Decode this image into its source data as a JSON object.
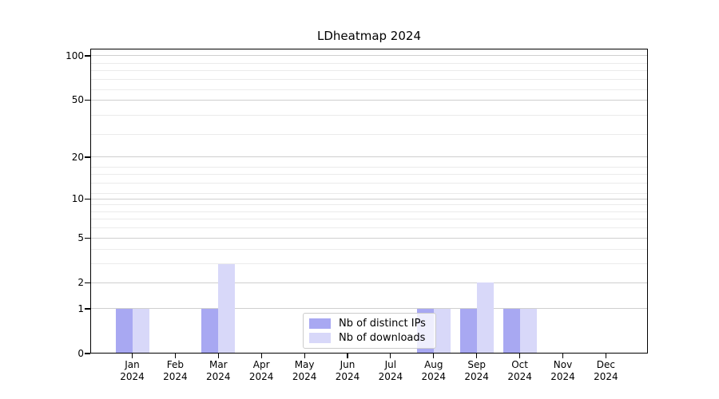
{
  "title": "LDheatmap 2024",
  "chart_data": {
    "type": "bar",
    "title": "LDheatmap 2024",
    "categories": [
      "Jan",
      "Feb",
      "Mar",
      "Apr",
      "May",
      "Jun",
      "Jul",
      "Aug",
      "Sep",
      "Oct",
      "Nov",
      "Dec"
    ],
    "year_label": "2024",
    "series": [
      {
        "name": "Nb of distinct IPs",
        "color": "#a8a8f2",
        "values": [
          1,
          0,
          1,
          0,
          0,
          0,
          0,
          1,
          1,
          1,
          0,
          0
        ]
      },
      {
        "name": "Nb of downloads",
        "color": "#d8d8f9",
        "values": [
          1,
          0,
          3,
          0,
          0,
          0,
          0,
          1,
          2,
          1,
          0,
          0
        ]
      }
    ],
    "xlabel": "",
    "ylabel": "",
    "y_ticks": [
      0,
      1,
      2,
      5,
      10,
      20,
      50,
      100
    ],
    "y_scale": "log10(1+v)",
    "ylim": [
      0,
      112
    ],
    "grid": "horizontal-major-and-minor",
    "minor_grid_1plusv": [
      4,
      5,
      7,
      8,
      9,
      10,
      12,
      14,
      16,
      18,
      30,
      40,
      60,
      70,
      80,
      90,
      110
    ],
    "legend_position": "lower-center",
    "colors": {
      "grid_major": "#cfcfcf",
      "grid_minor": "#ebebeb",
      "axis": "#000000",
      "legend_border": "#cccccc",
      "text": "#000000"
    }
  }
}
